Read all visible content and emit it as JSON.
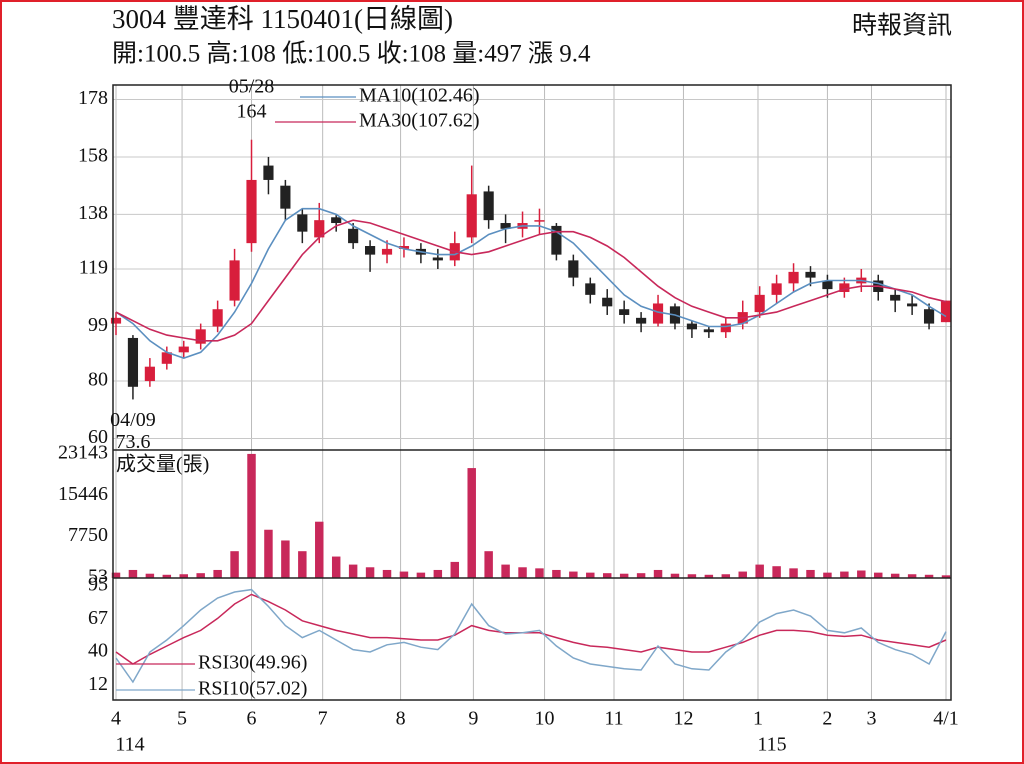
{
  "chart_data": [
    {
      "type": "candlestick",
      "title": "3004 豐達科 1150401(日線圖)",
      "subtitle": "開:100.5 高:108 低:100.5 收:108 量:497 漲 9.4",
      "source": "時報資訊",
      "open": [
        100,
        95,
        80,
        86,
        90,
        93,
        99,
        108,
        128,
        155,
        148,
        138,
        130,
        137,
        133,
        127,
        124,
        126,
        126,
        123,
        122,
        130,
        146,
        135,
        133,
        136,
        134,
        122,
        114,
        109,
        105,
        102,
        100,
        106,
        100,
        98,
        97,
        100,
        104,
        110,
        114,
        118,
        115,
        111,
        114,
        115,
        110,
        107,
        105,
        100.5
      ],
      "high": [
        104,
        96,
        88,
        92,
        94,
        100,
        108,
        126,
        164,
        158,
        150,
        140,
        142,
        138,
        135,
        129,
        129,
        130,
        128,
        126,
        132,
        155,
        148,
        138,
        139,
        140,
        135,
        124,
        116,
        112,
        108,
        104,
        110,
        107,
        101,
        99,
        102,
        108,
        113,
        117,
        121,
        120,
        117,
        116,
        119,
        117,
        112,
        110,
        107,
        108
      ],
      "low": [
        96,
        73.6,
        78,
        84,
        88,
        91,
        97,
        106,
        125,
        145,
        136,
        128,
        128,
        132,
        126,
        118,
        121,
        123,
        121,
        119,
        120,
        128,
        133,
        128,
        130,
        131,
        122,
        113,
        107,
        103,
        100,
        97,
        99,
        98,
        95,
        95,
        95,
        98,
        102,
        107,
        111,
        113,
        109,
        109,
        111,
        108,
        104,
        103,
        98,
        100.5
      ],
      "close": [
        102,
        78,
        85,
        90,
        92,
        98,
        105,
        122,
        150,
        150,
        140,
        132,
        136,
        135,
        128,
        124,
        126,
        127,
        124,
        122,
        128,
        145,
        136,
        133,
        135,
        136,
        124,
        116,
        110,
        106,
        103,
        100,
        107,
        100,
        98,
        97,
        100,
        104,
        110,
        114,
        118,
        116,
        112,
        114,
        116,
        111,
        108,
        106,
        100,
        108
      ],
      "up_color": "#d81e3c",
      "down_color": "#222222",
      "ylim": [
        56,
        182
      ],
      "yticks": [
        178,
        158,
        138,
        119,
        99,
        80,
        60
      ],
      "grid": true,
      "series": [
        {
          "name": "MA10(102.46)",
          "color": "#5b8fc0",
          "values": [
            104,
            100,
            94,
            90,
            88,
            90,
            96,
            104,
            114,
            126,
            136,
            140,
            140,
            138,
            134,
            131,
            128,
            126,
            125,
            124,
            124,
            127,
            131,
            133,
            134,
            134,
            132,
            128,
            122,
            116,
            110,
            106,
            104,
            103,
            101,
            99,
            99,
            100,
            103,
            107,
            111,
            114,
            115,
            115,
            115,
            114,
            112,
            110,
            106,
            102.46
          ]
        },
        {
          "name": "MA30(107.62)",
          "color": "#c8285a",
          "values": [
            104,
            101,
            98,
            96,
            95,
            94,
            94,
            96,
            100,
            108,
            116,
            124,
            130,
            134,
            136,
            135,
            133,
            131,
            129,
            127,
            125,
            124,
            125,
            127,
            129,
            131,
            132,
            132,
            130,
            127,
            123,
            118,
            113,
            109,
            106,
            104,
            102,
            102,
            103,
            104,
            106,
            108,
            110,
            112,
            113,
            113,
            112,
            111,
            109,
            107.62
          ]
        }
      ],
      "annotations": [
        {
          "date": "05/28",
          "value": 164,
          "x": 8,
          "placement": "above"
        },
        {
          "date": "04/09",
          "value": 73.6,
          "x": 1,
          "placement": "below"
        }
      ]
    },
    {
      "type": "bar",
      "title": "成交量(張)",
      "color": "#c8285a",
      "values": [
        1000,
        1500,
        800,
        600,
        700,
        900,
        1500,
        5000,
        23143,
        9000,
        7000,
        5000,
        10500,
        4000,
        2500,
        2000,
        1500,
        1200,
        1000,
        1500,
        3000,
        20500,
        5000,
        2500,
        2000,
        1800,
        1500,
        1200,
        1000,
        900,
        800,
        900,
        1500,
        800,
        700,
        600,
        700,
        1200,
        2500,
        2200,
        1800,
        1500,
        1000,
        1200,
        1400,
        1000,
        800,
        700,
        600,
        497
      ],
      "ylim": [
        0,
        23500
      ],
      "yticks": [
        23143,
        15446,
        7750,
        53
      ]
    },
    {
      "type": "line",
      "series": [
        {
          "name": "RSI30(49.96)",
          "color": "#c8285a",
          "values": [
            40,
            30,
            38,
            45,
            52,
            58,
            68,
            80,
            88,
            82,
            75,
            66,
            62,
            58,
            55,
            52,
            52,
            51,
            50,
            50,
            54,
            62,
            58,
            56,
            56,
            56,
            52,
            48,
            45,
            44,
            42,
            40,
            44,
            42,
            40,
            40,
            44,
            48,
            54,
            58,
            58,
            57,
            54,
            53,
            54,
            50,
            48,
            46,
            44,
            49.96
          ]
        },
        {
          "name": "RSI10(57.02)",
          "color": "#7fa7c9",
          "values": [
            35,
            15,
            40,
            50,
            62,
            75,
            85,
            90,
            92,
            78,
            62,
            52,
            58,
            50,
            42,
            40,
            46,
            48,
            44,
            42,
            55,
            80,
            62,
            55,
            56,
            58,
            45,
            35,
            30,
            28,
            26,
            25,
            45,
            30,
            26,
            25,
            40,
            50,
            65,
            72,
            75,
            70,
            58,
            56,
            60,
            48,
            42,
            38,
            30,
            57.02
          ]
        }
      ],
      "ylim": [
        0,
        100
      ],
      "yticks": [
        95,
        67,
        40,
        12
      ],
      "xlim": [
        0,
        49
      ],
      "xgrid": true,
      "xticks": [
        {
          "value": 0,
          "label": "4"
        },
        {
          "value": 3.9,
          "label": "5"
        },
        {
          "value": 8,
          "label": "6"
        },
        {
          "value": 12.2,
          "label": "7"
        },
        {
          "value": 16.8,
          "label": "8"
        },
        {
          "value": 21.1,
          "label": "9"
        },
        {
          "value": 25.3,
          "label": "10"
        },
        {
          "value": 29.4,
          "label": "11"
        },
        {
          "value": 33.5,
          "label": "12"
        },
        {
          "value": 37.9,
          "label": "1"
        },
        {
          "value": 42,
          "label": "2"
        },
        {
          "value": 44.6,
          "label": "3"
        },
        {
          "value": 49,
          "label": "4/1"
        }
      ],
      "xsublabels": [
        {
          "value": 0,
          "label": "114"
        },
        {
          "value": 37.9,
          "label": "115"
        }
      ]
    }
  ]
}
